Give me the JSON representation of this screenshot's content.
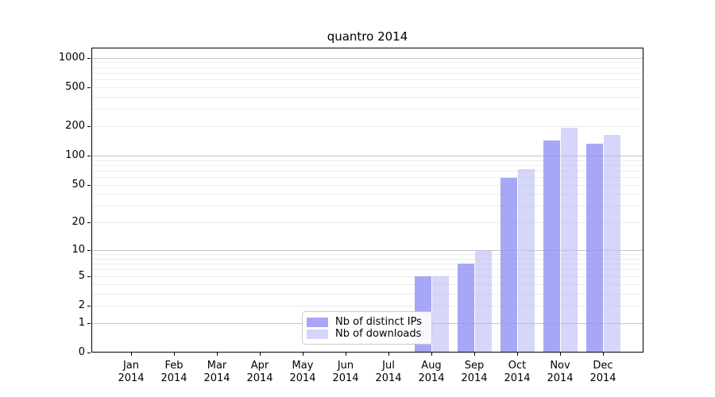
{
  "chart_data": {
    "type": "bar",
    "title": "quantro 2014",
    "x_axis": {
      "categories": [
        "Jan",
        "Feb",
        "Mar",
        "Apr",
        "May",
        "Jun",
        "Jul",
        "Aug",
        "Sep",
        "Oct",
        "Nov",
        "Dec"
      ],
      "year_label": "2014"
    },
    "y_axis": {
      "scale": "log1p",
      "ticks": [
        0,
        1,
        2,
        5,
        10,
        20,
        50,
        100,
        200,
        500,
        1000
      ],
      "ylim": [
        0,
        1270
      ],
      "grid": true,
      "major_grid_values": [
        1,
        10,
        100,
        1000
      ],
      "minor_grid_values": [
        2,
        3,
        4,
        5,
        6,
        7,
        8,
        9,
        20,
        30,
        40,
        50,
        60,
        70,
        80,
        90,
        200,
        300,
        400,
        500,
        600,
        700,
        800,
        900
      ]
    },
    "series": [
      {
        "name": "Nb of distinct IPs",
        "color": "#a5a5f3",
        "fill": "rgba(145,145,243,0.8)",
        "values": [
          0,
          0,
          0,
          0,
          0,
          0,
          0,
          5,
          7,
          59,
          143,
          132
        ]
      },
      {
        "name": "Nb of downloads",
        "color": "#d6d6fa",
        "fill": "rgba(187,187,246,0.6)",
        "values": [
          0,
          0,
          0,
          0,
          0,
          0,
          0,
          5,
          10,
          73,
          192,
          162
        ]
      }
    ],
    "legend": {
      "position": "bottom-center",
      "entries": [
        "Nb of distinct IPs",
        "Nb of downloads"
      ]
    },
    "grid_major_color": "#c6c6c6",
    "grid_minor_color": "#ececec",
    "axis_color": "#000000",
    "background_color": "#ffffff"
  }
}
